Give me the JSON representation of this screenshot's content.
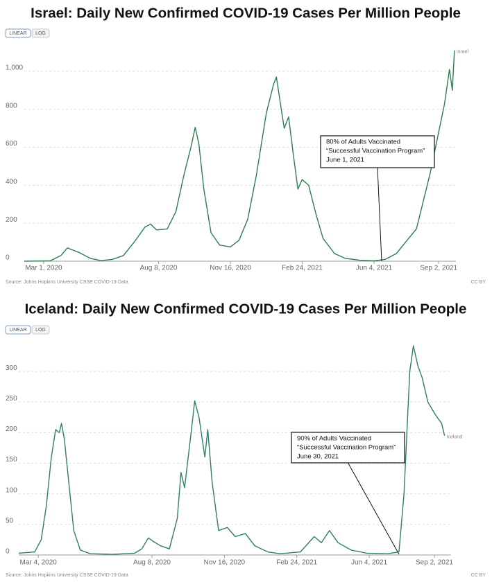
{
  "chart_data": [
    {
      "type": "line",
      "title": "Israel: Daily New Confirmed COVID-19 Cases Per Million People",
      "buttons": [
        "LINEAR",
        "LOG"
      ],
      "x": [
        "2020-02-03",
        "2020-03-10",
        "2020-03-25",
        "2020-04-03",
        "2020-04-10",
        "2020-04-20",
        "2020-05-05",
        "2020-05-20",
        "2020-06-05",
        "2020-06-20",
        "2020-07-05",
        "2020-07-20",
        "2020-07-28",
        "2020-08-05",
        "2020-08-20",
        "2020-09-01",
        "2020-09-12",
        "2020-09-22",
        "2020-09-28",
        "2020-10-03",
        "2020-10-10",
        "2020-10-20",
        "2020-11-01",
        "2020-11-16",
        "2020-11-28",
        "2020-12-10",
        "2020-12-22",
        "2021-01-05",
        "2021-01-15",
        "2021-01-19",
        "2021-01-25",
        "2021-01-30",
        "2021-02-05",
        "2021-02-12",
        "2021-02-18",
        "2021-02-24",
        "2021-03-05",
        "2021-03-15",
        "2021-03-25",
        "2021-04-10",
        "2021-04-25",
        "2021-05-15",
        "2021-06-04",
        "2021-06-20",
        "2021-07-05",
        "2021-07-20",
        "2021-08-02",
        "2021-08-21",
        "2021-09-10",
        "2021-09-17",
        "2021-09-21",
        "2021-09-24"
      ],
      "series": [
        {
          "name": "Israel",
          "color": "#2e7d4f",
          "values": [
            0,
            2,
            30,
            70,
            60,
            45,
            15,
            3,
            10,
            30,
            100,
            180,
            195,
            165,
            170,
            260,
            450,
            600,
            705,
            620,
            380,
            150,
            85,
            75,
            110,
            220,
            450,
            780,
            930,
            970,
            820,
            700,
            760,
            550,
            380,
            430,
            400,
            250,
            120,
            40,
            15,
            5,
            2,
            10,
            40,
            110,
            170,
            460,
            825,
            1010,
            900,
            1110
          ]
        }
      ],
      "xlim": [
        "2020-02-03",
        "2021-09-26"
      ],
      "xticks": [
        {
          "value": "2020-03-01",
          "label": "Mar 1, 2020"
        },
        {
          "value": "2020-08-08",
          "label": "Aug 8, 2020"
        },
        {
          "value": "2020-11-16",
          "label": "Nov 16, 2020"
        },
        {
          "value": "2021-02-24",
          "label": "Feb 24, 2021"
        },
        {
          "value": "2021-06-04",
          "label": "Jun 4, 2021"
        },
        {
          "value": "2021-09-02",
          "label": "Sep 2, 2021"
        }
      ],
      "ylim": [
        0,
        1120
      ],
      "yticks": [
        0,
        200,
        400,
        600,
        800,
        {
          "value": 1000,
          "label": "1,000"
        }
      ],
      "grid": true,
      "annotation": [
        "80% of Adults Vaccinated",
        "“Successful Vaccination Program”",
        "June 1, 2021"
      ],
      "source": "Source: Johns Hopkins University CSSE COVID-19 Data",
      "license": "CC BY"
    },
    {
      "type": "line",
      "title": "Iceland: Daily New Confirmed COVID-19 Cases Per Million People",
      "buttons": [
        "LINEAR",
        "LOG"
      ],
      "x": [
        "2020-02-06",
        "2020-02-28",
        "2020-03-08",
        "2020-03-15",
        "2020-03-22",
        "2020-03-28",
        "2020-04-02",
        "2020-04-05",
        "2020-04-09",
        "2020-04-15",
        "2020-04-22",
        "2020-05-01",
        "2020-05-15",
        "2020-06-15",
        "2020-07-15",
        "2020-07-25",
        "2020-08-03",
        "2020-08-10",
        "2020-08-20",
        "2020-09-01",
        "2020-09-12",
        "2020-09-17",
        "2020-09-22",
        "2020-10-01",
        "2020-10-06",
        "2020-10-12",
        "2020-10-20",
        "2020-10-24",
        "2020-10-30",
        "2020-11-08",
        "2020-11-20",
        "2020-12-01",
        "2020-12-15",
        "2020-12-28",
        "2021-01-15",
        "2021-02-01",
        "2021-03-01",
        "2021-03-20",
        "2021-03-30",
        "2021-04-10",
        "2021-04-22",
        "2021-05-10",
        "2021-06-01",
        "2021-06-30",
        "2021-07-15",
        "2021-07-22",
        "2021-07-30",
        "2021-08-04",
        "2021-08-10",
        "2021-08-16",
        "2021-08-24",
        "2021-09-03",
        "2021-09-12",
        "2021-09-16"
      ],
      "series": [
        {
          "name": "Iceland",
          "color": "#2e7d6a",
          "values": [
            3,
            5,
            25,
            80,
            160,
            205,
            200,
            215,
            190,
            120,
            40,
            8,
            2,
            1,
            3,
            10,
            28,
            22,
            15,
            10,
            60,
            135,
            110,
            200,
            252,
            225,
            160,
            205,
            120,
            40,
            45,
            30,
            35,
            15,
            5,
            2,
            5,
            30,
            20,
            40,
            20,
            8,
            3,
            2,
            5,
            100,
            300,
            342,
            310,
            290,
            250,
            230,
            215,
            195
          ]
        }
      ],
      "xlim": [
        "2020-02-06",
        "2021-09-25"
      ],
      "xticks": [
        {
          "value": "2020-03-04",
          "label": "Mar 4, 2020"
        },
        {
          "value": "2020-08-08",
          "label": "Aug 8, 2020"
        },
        {
          "value": "2020-11-16",
          "label": "Nov 16, 2020"
        },
        {
          "value": "2021-02-24",
          "label": "Feb 24, 2021"
        },
        {
          "value": "2021-06-04",
          "label": "Jun 4, 2021"
        },
        {
          "value": "2021-09-02",
          "label": "Sep 2, 2021"
        }
      ],
      "ylim": [
        0,
        350
      ],
      "yticks": [
        0,
        50,
        100,
        150,
        200,
        250,
        300
      ],
      "grid": true,
      "annotation": [
        "90% of Adults Vaccinated",
        "“Successful Vaccination Program”",
        "June 30, 2021"
      ],
      "source": "Source: Johns Hopkins University CSSE COVID-19 Data",
      "license": "CC BY"
    }
  ]
}
